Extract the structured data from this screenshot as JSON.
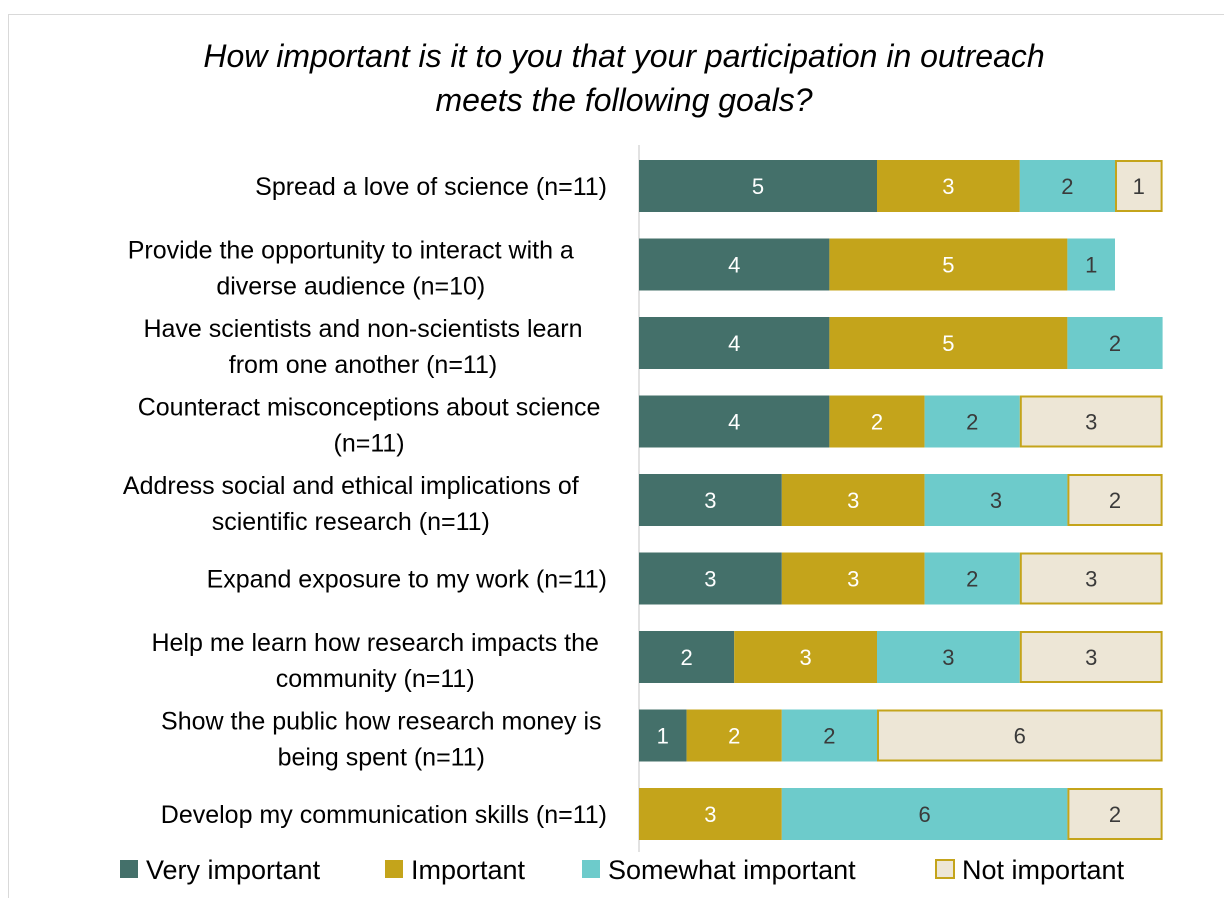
{
  "chart_data": {
    "type": "bar",
    "orientation": "horizontal",
    "stacked": true,
    "title": "How important is it to you that your participation in outreach meets the following goals?",
    "title_lines": [
      "How important is it to you that your participation in outreach",
      "meets the following goals?"
    ],
    "categories": [
      [
        "Spread a love of science (n=11)"
      ],
      [
        "Provide the opportunity to interact with a",
        "diverse audience (n=10)"
      ],
      [
        "Have scientists and non-scientists learn",
        "from one another (n=11)"
      ],
      [
        "Counteract misconceptions about science",
        "(n=11)"
      ],
      [
        "Address social and ethical implications of",
        "scientific research (n=11)"
      ],
      [
        "Expand exposure to my work (n=11)"
      ],
      [
        "Help me learn how research impacts the",
        "community (n=11)"
      ],
      [
        "Show the public how research money is",
        "being spent (n=11)"
      ],
      [
        "Develop my communication skills (n=11)"
      ]
    ],
    "series": [
      {
        "name": "Very important",
        "color": "#44706A",
        "label_color": "#ffffff",
        "outline": "",
        "values": [
          5,
          4,
          4,
          4,
          3,
          3,
          2,
          1,
          0
        ]
      },
      {
        "name": "Important",
        "color": "#C4A41B",
        "label_color": "#ffffff",
        "outline": "",
        "values": [
          3,
          5,
          5,
          2,
          3,
          3,
          3,
          2,
          3
        ]
      },
      {
        "name": "Somewhat important",
        "color": "#6DCBCB",
        "label_color": "#3a3a3a",
        "outline": "",
        "values": [
          2,
          1,
          2,
          2,
          3,
          2,
          3,
          2,
          6
        ]
      },
      {
        "name": "Not important",
        "color": "#EDE6D6",
        "label_color": "#3a3a3a",
        "outline": "#C4A41B",
        "values": [
          1,
          0,
          0,
          3,
          2,
          3,
          3,
          6,
          2
        ]
      }
    ],
    "xlim": [
      0,
      11
    ],
    "grid": false,
    "data_labels": true,
    "legend": "bottom"
  }
}
